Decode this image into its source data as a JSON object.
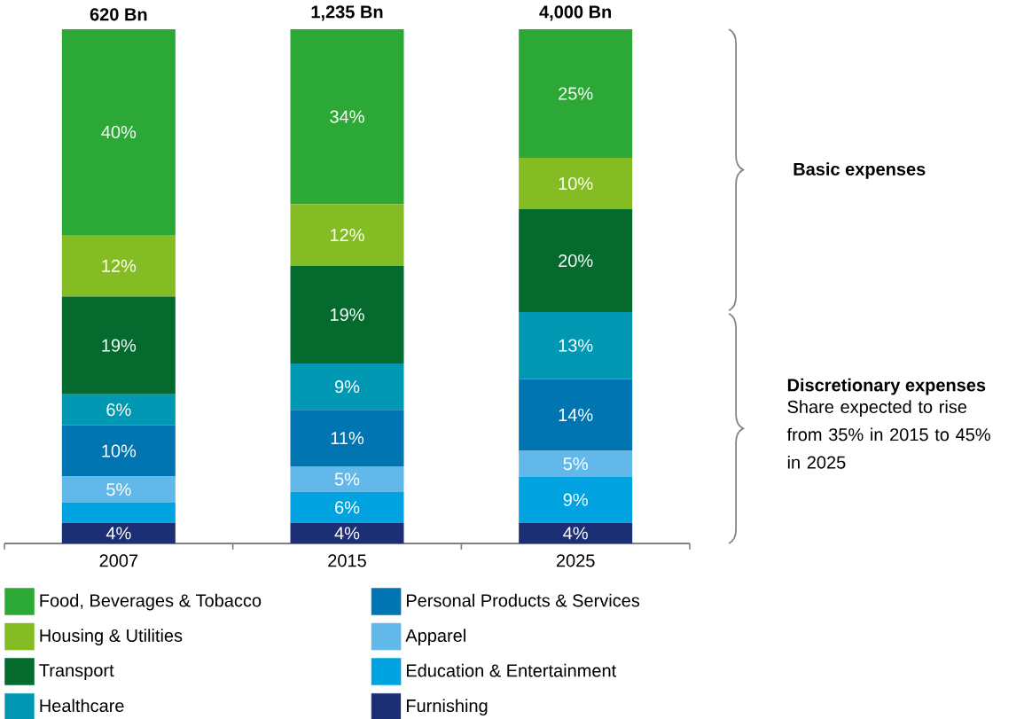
{
  "chart_data": {
    "type": "bar",
    "stacked": true,
    "categories": [
      "2007",
      "2015",
      "2025"
    ],
    "series": [
      {
        "name": "Furnishing",
        "color": "#1d2f74",
        "values": [
          4,
          4,
          4
        ],
        "value_labels": [
          "4%",
          "4%",
          "4%"
        ]
      },
      {
        "name": "Education & Entertainment",
        "color": "#00a3e0",
        "values": [
          4,
          6,
          9
        ],
        "value_labels": [
          null,
          "6%",
          "9%"
        ]
      },
      {
        "name": "Apparel",
        "color": "#62b9e9",
        "values": [
          5,
          5,
          5
        ],
        "value_labels": [
          "5%",
          "5%",
          "5%"
        ]
      },
      {
        "name": "Personal Products & Services",
        "color": "#0075b2",
        "values": [
          10,
          11,
          14
        ],
        "value_labels": [
          "10%",
          "11%",
          "14%"
        ]
      },
      {
        "name": "Healthcare",
        "color": "#0098b2",
        "values": [
          6,
          9,
          13
        ],
        "value_labels": [
          "6%",
          "9%",
          "13%"
        ]
      },
      {
        "name": "Transport",
        "color": "#046a2e",
        "values": [
          19,
          19,
          20
        ],
        "value_labels": [
          "19%",
          "19%",
          "20%"
        ]
      },
      {
        "name": "Housing & Utilities",
        "color": "#84bd23",
        "values": [
          12,
          12,
          10
        ],
        "value_labels": [
          "12%",
          "12%",
          "10%"
        ]
      },
      {
        "name": "Food, Beverages & Tobacco",
        "color": "#2ca836",
        "values": [
          40,
          34,
          25
        ],
        "value_labels": [
          "40%",
          "34%",
          "25%"
        ]
      }
    ],
    "tick_labels": "x",
    "legend": "bottom",
    "annotations": [
      {
        "text": "620 Bn",
        "x": "2007",
        "y": 100
      },
      {
        "text": "1,235 Bn",
        "x": "2015",
        "y": 100
      },
      {
        "text": "4,000 Bn",
        "x": "2025",
        "y": 100
      },
      "Basic expenses",
      "Discretionary expenses",
      "Share expected to rise from 35% in 2015 to 45% in 2025"
    ]
  }
}
